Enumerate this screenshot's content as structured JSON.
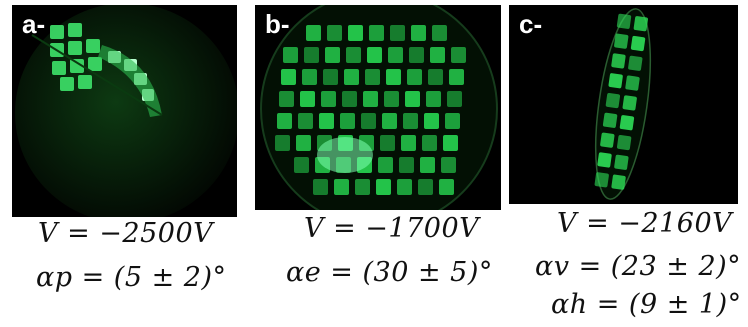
{
  "panels": [
    {
      "label": "a-",
      "voltage": "V = −2500V",
      "angles": [
        "αp = (5 ± 2)°"
      ]
    },
    {
      "label": "b-",
      "voltage": "V = −1700V",
      "angles": [
        "αe = (30 ± 5)°"
      ]
    },
    {
      "label": "c-",
      "voltage": "V = −2160V",
      "angles": [
        "αv = (23 ± 2)°",
        "αh = (9 ± 1)°"
      ]
    }
  ],
  "colors": {
    "phosphor": "#22d84a",
    "background": "#000000"
  }
}
